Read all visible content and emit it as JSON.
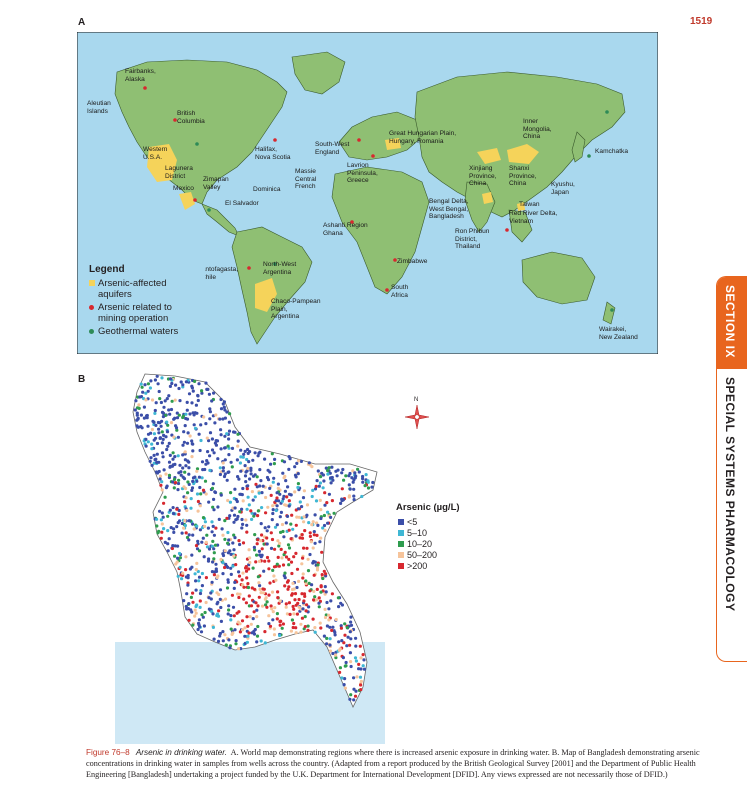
{
  "page": {
    "number": "1519"
  },
  "panel_a": {
    "letter": "A",
    "labels": [
      {
        "text": "Fairbanks,\nAlaska"
      },
      {
        "text": "Aleutian\nIslands"
      },
      {
        "text": "British\nColumbia"
      },
      {
        "text": "Western\nU.S.A."
      },
      {
        "text": "Halifax,\nNova Scotia"
      },
      {
        "text": "Lagunera\nDistrict"
      },
      {
        "text": "Mexico"
      },
      {
        "text": "Zimapan\nValley"
      },
      {
        "text": "Dominica"
      },
      {
        "text": "El Salvador"
      },
      {
        "text": "Massie\nCentral\nFrench"
      },
      {
        "text": "South-West\nEngland"
      },
      {
        "text": "Lavrion\nPeninsula,\nGreece"
      },
      {
        "text": "Great Hungarian Plain,\nHungary, Romania"
      },
      {
        "text": "Inner\nMongolia,\nChina"
      },
      {
        "text": "Kamchatka"
      },
      {
        "text": "Xinjiang\nProvince,\nChina"
      },
      {
        "text": "Shanxi\nProvince,\nChina"
      },
      {
        "text": "Kyushu,\nJapan"
      },
      {
        "text": "Bengal Delta,\nWest Bengal,\nBangladesh"
      },
      {
        "text": "Taiwan"
      },
      {
        "text": "Red River Delta,\nVietnam"
      },
      {
        "text": "Ron Phibun\nDistrict,\nThailand"
      },
      {
        "text": "Ashanti Region\nGhana"
      },
      {
        "text": "Zimbabwe"
      },
      {
        "text": "South\nAfrica"
      },
      {
        "text": "Antofagasta,\nChile"
      },
      {
        "text": "North-West\nArgentina"
      },
      {
        "text": "Chaco-Pampean\nPlain,\nArgentina"
      },
      {
        "text": "Wairakei,\nNew Zealand"
      }
    ],
    "legend": {
      "title": "Legend",
      "items": [
        {
          "label": "Arsenic-affected\naquifers",
          "color": "#f5d35a"
        },
        {
          "label": "Arsenic related to\nmining operation",
          "color": "#d7282f"
        },
        {
          "label": "Geothermal waters",
          "color": "#2e8b57"
        }
      ]
    },
    "colors": {
      "ocean": "#a9d8ee",
      "land": "#8fbf73",
      "aquifer": "#f5d35a"
    }
  },
  "panel_b": {
    "letter": "B",
    "compass": "N",
    "legend": {
      "title": "Arsenic (µg/L)",
      "items": [
        {
          "label": "<5",
          "color": "#3b4ea8"
        },
        {
          "label": "5–10",
          "color": "#3fb7d4"
        },
        {
          "label": "10–20",
          "color": "#2e9c4e"
        },
        {
          "label": "50–200",
          "color": "#f6c49b"
        },
        {
          "label": ">200",
          "color": "#d7282f"
        }
      ]
    },
    "colors": {
      "bay": "#cfe8f5"
    }
  },
  "side_tab": {
    "section": "SECTION IX",
    "title": "SPECIAL SYSTEMS PHARMACOLOGY",
    "color": "#e8651e"
  },
  "caption": {
    "figure": "Figure 76–8",
    "title": "Arsenic in drinking water.",
    "text": "A. World map demonstrating regions where there is increased arsenic exposure in drinking water. B. Map of Bangladesh demonstrating arsenic concentrations in drinking water in samples from wells across the country. (Adapted from a report produced by the British Geological Survey [2001] and the Department of Public Health Engineering [Bangladesh] undertaking a project funded by the U.K. Department for International Development [DFID]. Any views expressed are not necessarily those of DFID.)"
  }
}
